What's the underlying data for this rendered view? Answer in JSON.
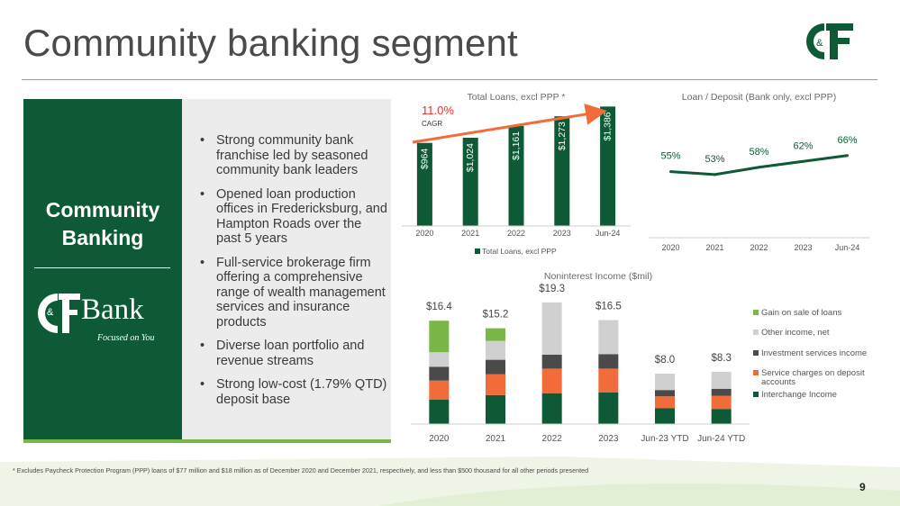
{
  "title": "Community banking segment",
  "left_panel": {
    "title_line1": "Community",
    "title_line2": "Banking",
    "logo_letters": "&",
    "bank_word": "Bank",
    "tagline": "Focused on You"
  },
  "bullets": [
    "Strong community bank franchise led by seasoned community bank leaders",
    "Opened loan production offices in Fredericksburg, and Hampton Roads over the past 5 years",
    "Full-service brokerage firm offering a comprehensive range of wealth management services and insurance products",
    "Diverse loan portfolio and revenue streams",
    "Strong low-cost (1.79% QTD) deposit base"
  ],
  "footnote": "* Excludes Paycheck Protection Program (PPP) loans of $77 million and $18 million as of December 2020 and December 2021, respectively, and less than $500 thousand for all other periods presented",
  "page_number": "9",
  "colors": {
    "brand_green": "#0e5a36",
    "accent_green": "#7ab648",
    "orange": "#f26b3a",
    "light_gray": "#d0d0d0",
    "dark_gray": "#4a4a4a",
    "cagr_red": "#e8312f"
  },
  "chart_data": [
    {
      "type": "bar",
      "title": "Total Loans, excl PPP *",
      "categories": [
        "2020",
        "2021",
        "2022",
        "2023",
        "Jun-24"
      ],
      "values": [
        964,
        1024,
        1161,
        1273,
        1386
      ],
      "data_labels": [
        "$964",
        "$1,024",
        "$1,161",
        "$1,273",
        "$1,386"
      ],
      "legend": "Total Loans, excl PPP",
      "legend_position": "bottom",
      "annotation": {
        "value": "11.0%",
        "label": "CAGR"
      },
      "color": "#0e5a36",
      "grid": false
    },
    {
      "type": "line",
      "title": "Loan / Deposit (Bank only, excl PPP)",
      "categories": [
        "2020",
        "2021",
        "2022",
        "2023",
        "Jun-24"
      ],
      "values": [
        55,
        53,
        58,
        62,
        66
      ],
      "data_labels": [
        "55%",
        "53%",
        "58%",
        "62%",
        "66%"
      ],
      "color": "#0e5a36",
      "grid": false
    },
    {
      "type": "bar",
      "stacked": true,
      "title": "Noninterest Income ($mil)",
      "categories": [
        "2020",
        "2021",
        "2022",
        "2023",
        "Jun-23 YTD",
        "Jun-24 YTD"
      ],
      "totals": [
        "$16.4",
        "$15.2",
        "$19.3",
        "$16.5",
        "$8.0",
        "$8.3"
      ],
      "series": [
        {
          "name": "Interchange Income",
          "color": "#0e5a36",
          "values": [
            3.9,
            4.6,
            4.9,
            5.0,
            2.5,
            2.4
          ]
        },
        {
          "name": "Service charges on deposit accounts",
          "color": "#f26b3a",
          "values": [
            3.0,
            3.3,
            3.9,
            3.8,
            1.9,
            2.1
          ]
        },
        {
          "name": "Investment services income",
          "color": "#4a4a4a",
          "values": [
            2.2,
            2.3,
            2.2,
            2.3,
            1.0,
            1.1
          ]
        },
        {
          "name": "Other income, net",
          "color": "#d0d0d0",
          "values": [
            2.3,
            3.0,
            8.3,
            5.4,
            2.6,
            2.7
          ]
        },
        {
          "name": "Gain on sale of loans",
          "color": "#7ab648",
          "values": [
            5.0,
            2.0,
            0.0,
            0.0,
            0.0,
            0.0
          ]
        }
      ],
      "legend_position": "right",
      "grid": false
    }
  ]
}
